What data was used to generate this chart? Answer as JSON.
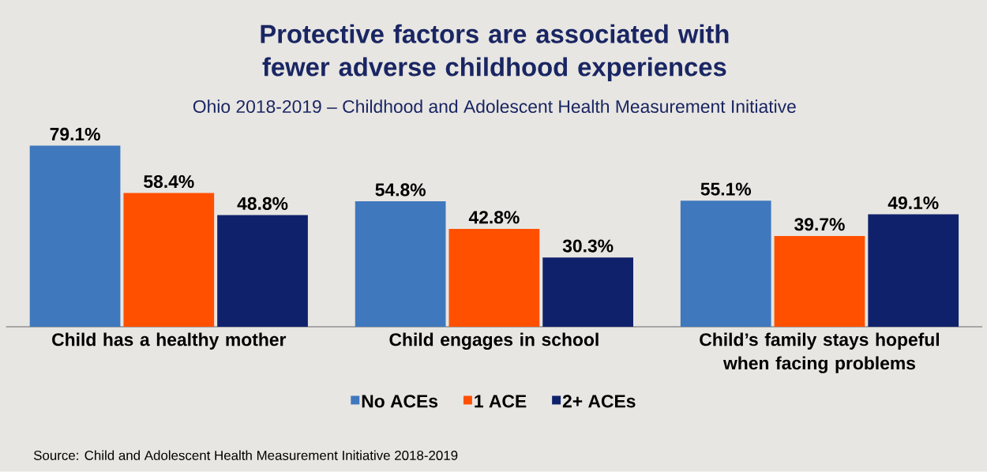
{
  "chart_data": {
    "type": "bar",
    "title": "Protective factors are associated with fewer adverse childhood experiences",
    "subtitle": "Ohio 2018-2019 – Childhood and Adolescent Health Measurement Initiative",
    "categories": [
      "Child has a healthy mother",
      "Child engages in school",
      "Child’s family stays hopeful when facing problems"
    ],
    "series": [
      {
        "name": "No ACEs",
        "color": "#3f78bd",
        "values": [
          79.1,
          54.8,
          55.1
        ],
        "value_labels": [
          "79.1%",
          "54.8%",
          "55.1%"
        ]
      },
      {
        "name": "1 ACE",
        "color": "#ff5000",
        "values": [
          58.4,
          42.8,
          39.7
        ],
        "value_labels": [
          "58.4%",
          "42.8%",
          "39.7%"
        ]
      },
      {
        "name": "2+ ACEs",
        "color": "#10216c",
        "values": [
          48.8,
          30.3,
          49.1
        ],
        "value_labels": [
          "48.8%",
          "30.3%",
          "49.1%"
        ]
      }
    ],
    "legend": "bottom",
    "annotations": [
      "Source: Child and Adolescent Health Measurement Initiative 2018-2019"
    ]
  }
}
